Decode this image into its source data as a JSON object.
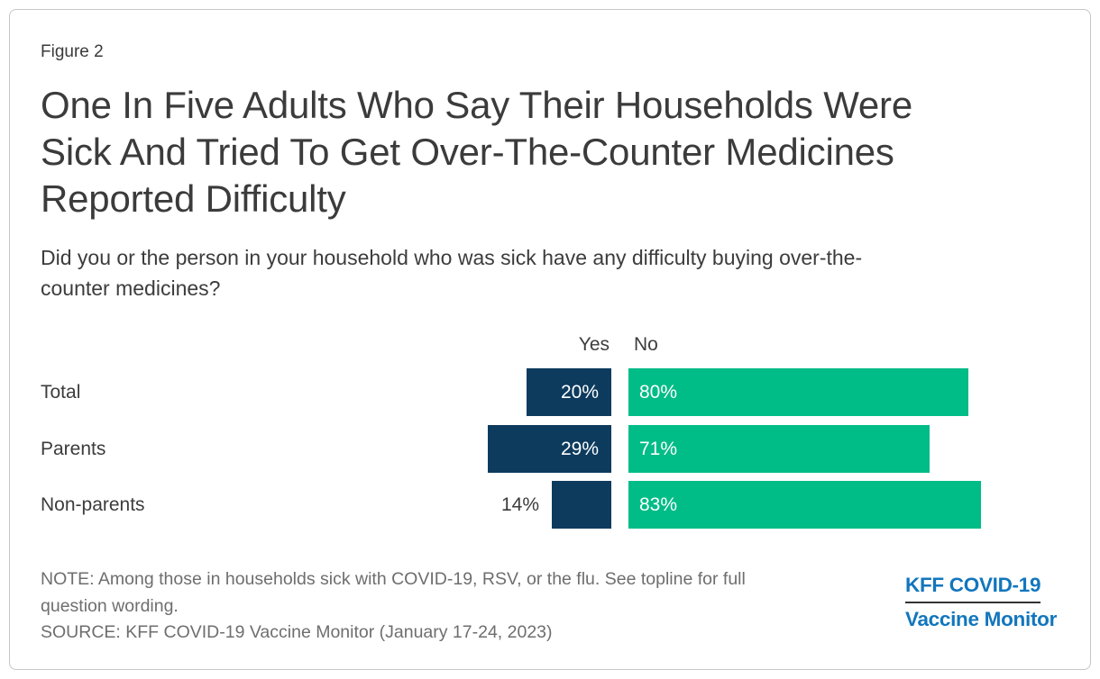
{
  "figure_label": "Figure 2",
  "title_lines": [
    "One In Five Adults Who Say Their Households Were",
    "Sick And Tried To Get Over-The-Counter Medicines",
    "Reported Difficulty"
  ],
  "subtitle_lines": [
    "Did you or the person in your household who was sick have any difficulty buying over-the-",
    "counter medicines?"
  ],
  "chart_data": {
    "type": "bar",
    "orientation": "horizontal-diverging",
    "categories": [
      "Total",
      "Parents",
      "Non-parents"
    ],
    "series": [
      {
        "name": "Yes",
        "values": [
          20,
          29,
          14
        ]
      },
      {
        "name": "No",
        "values": [
          80,
          71,
          83
        ]
      }
    ],
    "value_suffix": "%",
    "colors": {
      "yes": "#0d3b5e",
      "no": "#00bc87"
    },
    "legend_position": "top",
    "grid": false,
    "xlim": [
      0,
      100
    ]
  },
  "note_lines": [
    "NOTE: Among those in households sick with COVID-19, RSV, or the flu. See topline for full",
    "question wording.",
    "SOURCE: KFF COVID-19 Vaccine Monitor (January 17-24, 2023)"
  ],
  "logo": {
    "line1": "KFF COVID-19",
    "line2": "Vaccine Monitor",
    "color": "#1276bd"
  }
}
